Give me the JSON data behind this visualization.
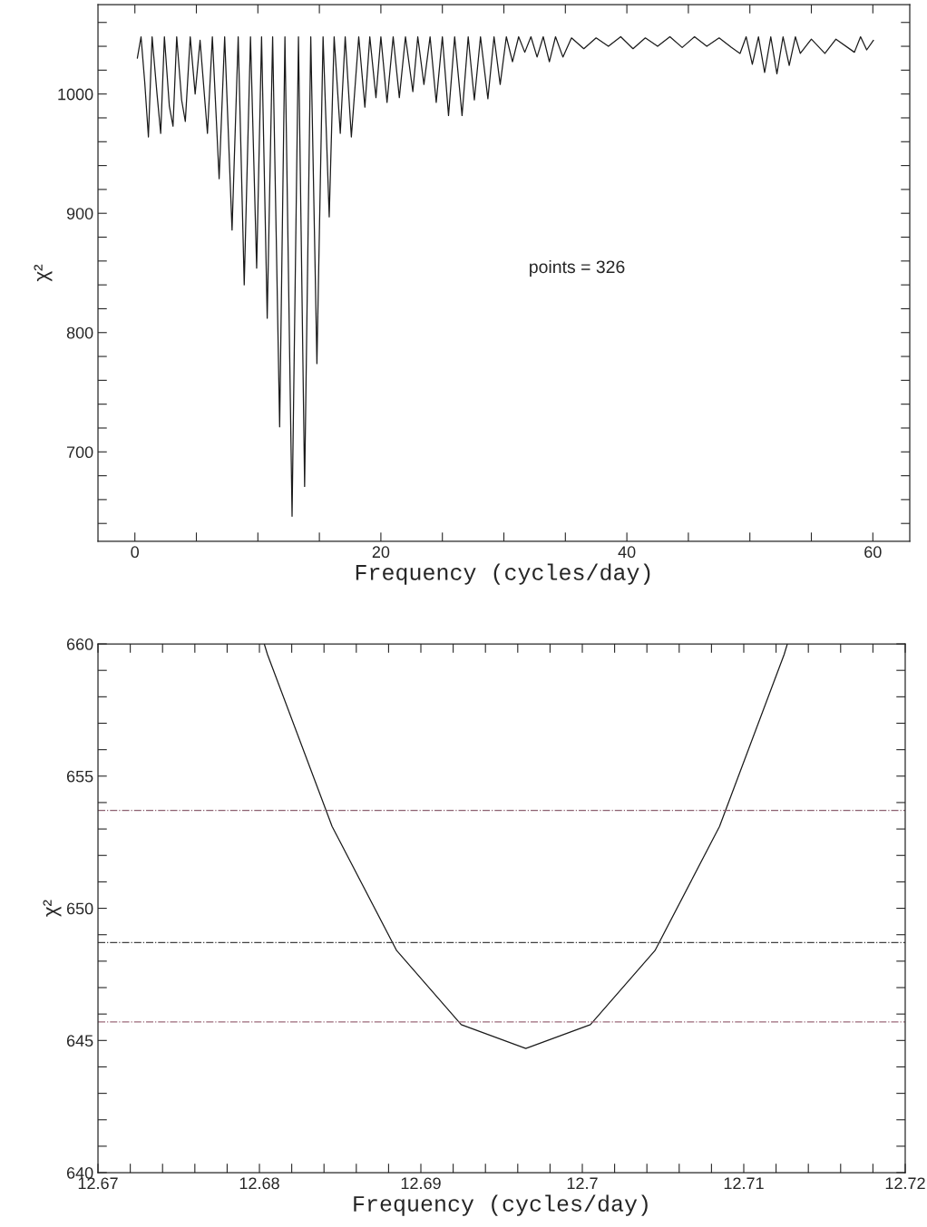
{
  "chart_data": [
    {
      "type": "line",
      "xlabel": "Frequency (cycles/day)",
      "ylabel": "χ²",
      "annotations": [
        "points = 326"
      ],
      "series": [
        {
          "color": "#1a1a1a",
          "x": [
            0.2,
            0.5,
            0.8,
            1.1,
            1.4,
            1.8,
            2.1,
            2.4,
            2.8,
            3.1,
            3.4,
            3.8,
            4.1,
            4.5,
            4.9,
            5.3,
            5.9,
            6.3,
            6.85,
            7.3,
            7.9,
            8.4,
            8.89,
            9.4,
            9.9,
            10.3,
            10.76,
            11.2,
            11.77,
            12.2,
            12.78,
            13.3,
            13.8,
            14.3,
            14.8,
            15.3,
            15.8,
            16.2,
            16.7,
            17.1,
            17.6,
            18.2,
            18.7,
            19.1,
            19.6,
            20.0,
            20.5,
            21.0,
            21.5,
            22.0,
            22.6,
            23.0,
            23.5,
            24.0,
            24.5,
            25.0,
            25.5,
            26.0,
            26.6,
            27.1,
            27.6,
            28.1,
            28.7,
            29.2,
            29.7,
            30.2,
            30.7,
            31.2,
            31.7,
            32.2,
            32.7,
            33.2,
            33.7,
            34.2,
            34.8,
            35.5,
            36.5,
            37.5,
            38.5,
            39.5,
            40.5,
            41.5,
            42.5,
            43.5,
            44.5,
            45.5,
            46.5,
            47.5,
            48.5,
            49.2,
            49.7,
            50.2,
            50.7,
            51.2,
            51.7,
            52.2,
            52.7,
            53.2,
            53.7,
            54.1,
            55.0,
            56.1,
            57.0,
            58.5,
            59.0,
            59.5,
            60.05
          ],
          "values": [
            1030,
            1048,
            1010,
            964,
            1048,
            1000,
            967,
            1048,
            990,
            973,
            1048,
            995,
            977,
            1048,
            1000,
            1045,
            967,
            1048,
            929,
            1048,
            886,
            1048,
            840,
            1048,
            854,
            1048,
            812,
            1048,
            721,
            1048,
            646,
            1048,
            671,
            1048,
            774,
            1048,
            897,
            1048,
            967,
            1048,
            964,
            1048,
            989,
            1048,
            997,
            1048,
            993,
            1048,
            997,
            1048,
            1002,
            1048,
            1008,
            1048,
            993,
            1048,
            982,
            1048,
            982,
            1048,
            995,
            1048,
            996,
            1048,
            1008,
            1048,
            1027,
            1048,
            1035,
            1048,
            1031,
            1048,
            1027,
            1048,
            1031,
            1047,
            1038,
            1047,
            1040,
            1048,
            1038,
            1047,
            1040,
            1048,
            1039,
            1048,
            1040,
            1047,
            1039,
            1034,
            1048,
            1025,
            1048,
            1018,
            1048,
            1017,
            1048,
            1024,
            1048,
            1034,
            1046,
            1034,
            1046,
            1035,
            1048,
            1037,
            1045
          ]
        }
      ],
      "xlim": [
        -3,
        63
      ],
      "ylim": [
        625,
        1075
      ],
      "xticks": [
        0,
        {
          "value": 5,
          "label": null
        },
        {
          "value": 10,
          "label": null
        },
        {
          "value": 15,
          "label": null
        },
        20,
        {
          "value": 25,
          "label": null
        },
        {
          "value": 30,
          "label": null
        },
        {
          "value": 35,
          "label": null
        },
        40,
        {
          "value": 45,
          "label": null
        },
        {
          "value": 50,
          "label": null
        },
        {
          "value": 55,
          "label": null
        },
        60
      ],
      "yticks": [
        {
          "value": 640,
          "label": null
        },
        {
          "value": 660,
          "label": null
        },
        {
          "value": 680,
          "label": null
        },
        700,
        {
          "value": 720,
          "label": null
        },
        {
          "value": 740,
          "label": null
        },
        {
          "value": 760,
          "label": null
        },
        {
          "value": 780,
          "label": null
        },
        800,
        {
          "value": 820,
          "label": null
        },
        {
          "value": 840,
          "label": null
        },
        {
          "value": 860,
          "label": null
        },
        {
          "value": 880,
          "label": null
        },
        900,
        {
          "value": 920,
          "label": null
        },
        {
          "value": 940,
          "label": null
        },
        {
          "value": 960,
          "label": null
        },
        {
          "value": 980,
          "label": null
        },
        1000,
        {
          "value": 1020,
          "label": null
        },
        {
          "value": 1040,
          "label": null
        },
        {
          "value": 1060,
          "label": null
        }
      ],
      "grid": false,
      "legend": false,
      "marker": "none",
      "line_style": "solid"
    },
    {
      "type": "line",
      "xlabel": "Frequency (cycles/day)",
      "ylabel": "χ²",
      "series": [
        {
          "color": "#1a1a1a",
          "x": [
            12.6803,
            12.6805,
            12.6845,
            12.6885,
            12.6925,
            12.6965,
            12.7005,
            12.7045,
            12.7085,
            12.7125,
            12.7127
          ],
          "values": [
            660,
            659.6,
            653.1,
            648.4,
            645.6,
            644.7,
            645.6,
            648.4,
            653.1,
            659.6,
            660
          ]
        }
      ],
      "ref_lines": [
        {
          "axis": "y",
          "value": 653.7,
          "color": "#8c6070",
          "line_style": "dashdot"
        },
        {
          "axis": "y",
          "value": 648.7,
          "color": "#404040",
          "line_style": "dashdot"
        },
        {
          "axis": "y",
          "value": 645.7,
          "color": "#9c6a7a",
          "line_style": "dashdot"
        }
      ],
      "xlim": [
        12.67,
        12.72
      ],
      "ylim": [
        640,
        660
      ],
      "xticks": [
        12.67,
        {
          "value": 12.672,
          "label": null
        },
        {
          "value": 12.674,
          "label": null
        },
        {
          "value": 12.676,
          "label": null
        },
        {
          "value": 12.678,
          "label": null
        },
        12.68,
        {
          "value": 12.682,
          "label": null
        },
        {
          "value": 12.684,
          "label": null
        },
        {
          "value": 12.686,
          "label": null
        },
        {
          "value": 12.688,
          "label": null
        },
        12.69,
        {
          "value": 12.692,
          "label": null
        },
        {
          "value": 12.694,
          "label": null
        },
        {
          "value": 12.696,
          "label": null
        },
        {
          "value": 12.698,
          "label": null
        },
        12.7,
        {
          "value": 12.702,
          "label": null
        },
        {
          "value": 12.704,
          "label": null
        },
        {
          "value": 12.706,
          "label": null
        },
        {
          "value": 12.708,
          "label": null
        },
        12.71,
        {
          "value": 12.712,
          "label": null
        },
        {
          "value": 12.714,
          "label": null
        },
        {
          "value": 12.716,
          "label": null
        },
        {
          "value": 12.718,
          "label": null
        },
        12.72
      ],
      "yticks": [
        640,
        {
          "value": 641,
          "label": null
        },
        {
          "value": 642,
          "label": null
        },
        {
          "value": 643,
          "label": null
        },
        {
          "value": 644,
          "label": null
        },
        645,
        {
          "value": 646,
          "label": null
        },
        {
          "value": 647,
          "label": null
        },
        {
          "value": 648,
          "label": null
        },
        {
          "value": 649,
          "label": null
        },
        650,
        {
          "value": 651,
          "label": null
        },
        {
          "value": 652,
          "label": null
        },
        {
          "value": 653,
          "label": null
        },
        {
          "value": 654,
          "label": null
        },
        655,
        {
          "value": 656,
          "label": null
        },
        {
          "value": 657,
          "label": null
        },
        {
          "value": 658,
          "label": null
        },
        {
          "value": 659,
          "label": null
        },
        660
      ],
      "grid": false,
      "legend": false,
      "marker": "none",
      "line_style": "solid"
    }
  ]
}
